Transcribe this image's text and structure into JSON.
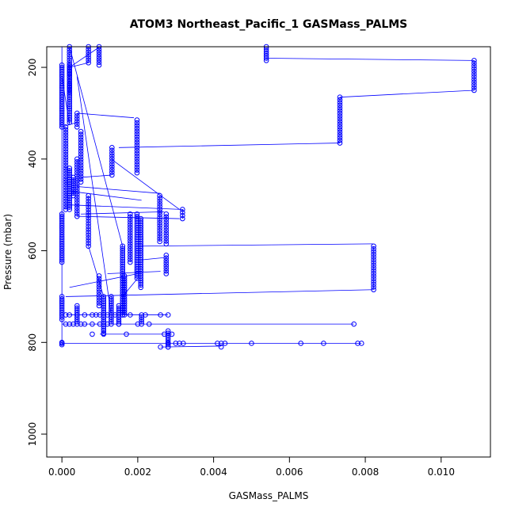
{
  "chart_data": {
    "type": "scatter",
    "title": "ATOM3 Northeast_Pacific_1 GASMass_PALMS",
    "xlabel": "GASMass_PALMS",
    "ylabel": "Pressure (mbar)",
    "xlim": [
      -0.0004,
      0.0113
    ],
    "ylim": [
      1050,
      155
    ],
    "y_inverted": true,
    "grid": false,
    "marker": "open-circle",
    "connected": true,
    "series_color": "#0000ff",
    "x_ticks": [
      {
        "value": 0.0,
        "label": "0.000"
      },
      {
        "value": 0.002,
        "label": "0.002"
      },
      {
        "value": 0.004,
        "label": "0.004"
      },
      {
        "value": 0.006,
        "label": "0.006"
      },
      {
        "value": 0.008,
        "label": "0.008"
      },
      {
        "value": 0.01,
        "label": "0.010"
      }
    ],
    "y_ticks": [
      {
        "value": 200,
        "label": "200"
      },
      {
        "value": 400,
        "label": "400"
      },
      {
        "value": 600,
        "label": "600"
      },
      {
        "value": 800,
        "label": "800"
      },
      {
        "value": 1000,
        "label": "1000"
      }
    ],
    "segments": [
      {
        "x0": 0.0,
        "y0": 195,
        "x1": 0.0,
        "y1": 330,
        "step": 5
      },
      {
        "x0": 0.0002,
        "y0": 155,
        "x1": 0.0002,
        "y1": 260,
        "step": 6
      },
      {
        "x0": 0.0004,
        "y0": 300,
        "x1": 0.0004,
        "y1": 330,
        "step": 6
      },
      {
        "x0": 0.0007,
        "y0": 155,
        "x1": 0.0007,
        "y1": 190,
        "step": 6
      },
      {
        "x0": 0.00098,
        "y0": 155,
        "x1": 0.00098,
        "y1": 195,
        "step": 6
      },
      {
        "x0": 0.0002,
        "y0": 195,
        "x1": 0.0002,
        "y1": 320,
        "step": 5
      },
      {
        "x0": 0.0001,
        "y0": 330,
        "x1": 0.0001,
        "y1": 510,
        "step": 6
      },
      {
        "x0": 0.0002,
        "y0": 420,
        "x1": 0.0002,
        "y1": 510,
        "step": 5
      },
      {
        "x0": 0.0003,
        "y0": 440,
        "x1": 0.0003,
        "y1": 480,
        "step": 6
      },
      {
        "x0": 0.0004,
        "y0": 400,
        "x1": 0.0004,
        "y1": 525,
        "step": 6
      },
      {
        "x0": 0.0005,
        "y0": 340,
        "x1": 0.0005,
        "y1": 450,
        "step": 6
      },
      {
        "x0": 0.0007,
        "y0": 480,
        "x1": 0.0007,
        "y1": 590,
        "step": 6
      },
      {
        "x0": 0.00132,
        "y0": 375,
        "x1": 0.00132,
        "y1": 435,
        "step": 6
      },
      {
        "x0": 0.00198,
        "y0": 315,
        "x1": 0.00198,
        "y1": 430,
        "step": 6
      },
      {
        "x0": 0.00539,
        "y0": 155,
        "x1": 0.00539,
        "y1": 185,
        "step": 5
      },
      {
        "x0": 0.00733,
        "y0": 265,
        "x1": 0.00733,
        "y1": 365,
        "step": 6
      },
      {
        "x0": 0.01087,
        "y0": 185,
        "x1": 0.01087,
        "y1": 250,
        "step": 6
      },
      {
        "x0": 0.0,
        "y0": 520,
        "x1": 0.0,
        "y1": 625,
        "step": 5
      },
      {
        "x0": 0.0,
        "y0": 700,
        "x1": 0.0,
        "y1": 750,
        "step": 5
      },
      {
        "x0": 0.0,
        "y0": 800,
        "x1": 0.0,
        "y1": 805,
        "step": 5
      },
      {
        "x0": 0.00098,
        "y0": 655,
        "x1": 0.00098,
        "y1": 720,
        "step": 6
      },
      {
        "x0": 0.0011,
        "y0": 700,
        "x1": 0.0011,
        "y1": 780,
        "step": 5
      },
      {
        "x0": 0.0013,
        "y0": 700,
        "x1": 0.0013,
        "y1": 760,
        "step": 5
      },
      {
        "x0": 0.0016,
        "y0": 590,
        "x1": 0.0016,
        "y1": 740,
        "step": 5
      },
      {
        "x0": 0.00165,
        "y0": 655,
        "x1": 0.00165,
        "y1": 740,
        "step": 5
      },
      {
        "x0": 0.0018,
        "y0": 520,
        "x1": 0.0018,
        "y1": 625,
        "step": 6
      },
      {
        "x0": 0.00198,
        "y0": 520,
        "x1": 0.00198,
        "y1": 660,
        "step": 5
      },
      {
        "x0": 0.00208,
        "y0": 530,
        "x1": 0.00208,
        "y1": 680,
        "step": 5
      },
      {
        "x0": 0.00258,
        "y0": 480,
        "x1": 0.00258,
        "y1": 580,
        "step": 6
      },
      {
        "x0": 0.00275,
        "y0": 520,
        "x1": 0.00275,
        "y1": 585,
        "step": 6
      },
      {
        "x0": 0.00275,
        "y0": 610,
        "x1": 0.00275,
        "y1": 650,
        "step": 6
      },
      {
        "x0": 0.00318,
        "y0": 510,
        "x1": 0.00318,
        "y1": 530,
        "step": 6
      },
      {
        "x0": 0.00822,
        "y0": 590,
        "x1": 0.00822,
        "y1": 685,
        "step": 6
      },
      {
        "x0": 0.0015,
        "y0": 720,
        "x1": 0.0015,
        "y1": 760,
        "step": 5
      },
      {
        "x0": 0.0021,
        "y0": 740,
        "x1": 0.0021,
        "y1": 760,
        "step": 5
      },
      {
        "x0": 0.0028,
        "y0": 775,
        "x1": 0.0028,
        "y1": 810,
        "step": 5
      },
      {
        "x0": 0.0004,
        "y0": 720,
        "x1": 0.0004,
        "y1": 760,
        "step": 5
      }
    ],
    "clusters": [
      {
        "y": 740,
        "x": [
          0.0001,
          0.0002,
          0.0004,
          0.0006,
          0.0008,
          0.0009,
          0.001,
          0.0012,
          0.0014,
          0.0016,
          0.0018,
          0.0022,
          0.0026,
          0.0028
        ]
      },
      {
        "y": 760,
        "x": [
          0.0001,
          0.0002,
          0.0003,
          0.0005,
          0.0006,
          0.0008,
          0.001,
          0.0012,
          0.0015,
          0.002,
          0.0023,
          0.0077
        ]
      },
      {
        "y": 782,
        "x": [
          0.0008,
          0.0011,
          0.0017,
          0.0027,
          0.0029
        ]
      },
      {
        "y": 802,
        "x": [
          0.0,
          0.0028,
          0.003,
          0.0031,
          0.0032,
          0.0041,
          0.0042,
          0.0043,
          0.005,
          0.0063,
          0.0069,
          0.0078,
          0.0079
        ]
      },
      {
        "y": 810,
        "x": [
          0.0026,
          0.0028,
          0.0042
        ]
      }
    ],
    "connectors": [
      {
        "x0": 0.0,
        "y0": 155,
        "x1": 0.0,
        "y1": 805
      },
      {
        "x0": 0.0002,
        "y0": 200,
        "x1": 0.0007,
        "y1": 190
      },
      {
        "x0": 0.0002,
        "y0": 200,
        "x1": 0.001,
        "y1": 155
      },
      {
        "x0": 0.0,
        "y0": 220,
        "x1": 0.0002,
        "y1": 325
      },
      {
        "x0": 0.0004,
        "y0": 300,
        "x1": 0.0019,
        "y1": 310
      },
      {
        "x0": 0.0004,
        "y0": 320,
        "x1": 0.0,
        "y1": 330
      },
      {
        "x0": 0.00539,
        "y0": 180,
        "x1": 0.01087,
        "y1": 185
      },
      {
        "x0": 0.00733,
        "y0": 265,
        "x1": 0.01087,
        "y1": 250
      },
      {
        "x0": 0.0015,
        "y0": 375,
        "x1": 0.00733,
        "y1": 365
      },
      {
        "x0": 0.0013,
        "y0": 400,
        "x1": 0.0031,
        "y1": 510
      },
      {
        "x0": 0.0005,
        "y0": 440,
        "x1": 0.0013,
        "y1": 435
      },
      {
        "x0": 0.0002,
        "y0": 470,
        "x1": 0.0021,
        "y1": 490
      },
      {
        "x0": 0.0004,
        "y0": 460,
        "x1": 0.0026,
        "y1": 475
      },
      {
        "x0": 0.0002,
        "y0": 500,
        "x1": 0.0032,
        "y1": 510
      },
      {
        "x0": 0.0004,
        "y0": 525,
        "x1": 0.0031,
        "y1": 530
      },
      {
        "x0": 0.0005,
        "y0": 520,
        "x1": 0.0027,
        "y1": 515
      },
      {
        "x0": 0.0021,
        "y0": 590,
        "x1": 0.0082,
        "y1": 585
      },
      {
        "x0": 0.0021,
        "y0": 620,
        "x1": 0.0027,
        "y1": 615
      },
      {
        "x0": 0.0012,
        "y0": 650,
        "x1": 0.0026,
        "y1": 645
      },
      {
        "x0": 0.0001,
        "y0": 700,
        "x1": 0.0082,
        "y1": 685
      },
      {
        "x0": 0.0007,
        "y0": 590,
        "x1": 0.0011,
        "y1": 700
      },
      {
        "x0": 0.0002,
        "y0": 155,
        "x1": 0.0016,
        "y1": 590
      },
      {
        "x0": 0.0004,
        "y0": 220,
        "x1": 0.0013,
        "y1": 740
      },
      {
        "x0": 0.0002,
        "y0": 680,
        "x1": 0.002,
        "y1": 650
      },
      {
        "x0": 0.0,
        "y0": 760,
        "x1": 0.0077,
        "y1": 760
      },
      {
        "x0": 0.0,
        "y0": 802,
        "x1": 0.0079,
        "y1": 802
      },
      {
        "x0": 0.0001,
        "y0": 740,
        "x1": 0.0028,
        "y1": 740
      },
      {
        "x0": 0.001,
        "y0": 782,
        "x1": 0.0029,
        "y1": 782
      },
      {
        "x0": 0.0026,
        "y0": 810,
        "x1": 0.0042,
        "y1": 808
      },
      {
        "x0": 0.0016,
        "y0": 700,
        "x1": 0.002,
        "y1": 660
      }
    ]
  }
}
